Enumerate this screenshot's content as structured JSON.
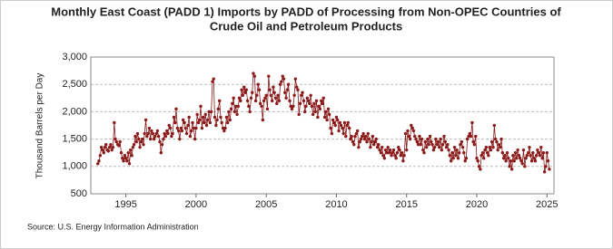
{
  "chart_data": {
    "type": "line",
    "title": [
      "Monthly East Coast (PADD 1) Imports by PADD of Processing from Non-OPEC Countries of",
      "Crude Oil and Petroleum Products"
    ],
    "y_label": "Thousand Barrels per Day",
    "source": "Source: U.S. Energy Information Administration",
    "xlim": [
      1992.5,
      2025.5
    ],
    "xticks": [
      1995,
      2000,
      2005,
      2010,
      2015,
      2020,
      2025
    ],
    "ylim": [
      500,
      3000
    ],
    "yticks": [
      500,
      {
        "value": 1000,
        "label": "1,000"
      },
      {
        "value": 1500,
        "label": "1,500"
      },
      {
        "value": 2000,
        "label": "2,000"
      },
      {
        "value": 2500,
        "label": "2,500"
      },
      {
        "value": 3000,
        "label": "3,000"
      }
    ],
    "grid": true,
    "series": [
      {
        "color": "#8b1a1a",
        "x": [
          1993,
          1993.08,
          1993.17,
          1993.25,
          1993.33,
          1993.42,
          1993.5,
          1993.58,
          1993.67,
          1993.75,
          1993.83,
          1993.92,
          1994,
          1994.08,
          1994.17,
          1994.25,
          1994.33,
          1994.42,
          1994.5,
          1994.58,
          1994.67,
          1994.75,
          1994.83,
          1994.92,
          1995,
          1995.08,
          1995.17,
          1995.25,
          1995.33,
          1995.42,
          1995.5,
          1995.58,
          1995.67,
          1995.75,
          1995.83,
          1995.92,
          1996,
          1996.08,
          1996.17,
          1996.25,
          1996.33,
          1996.42,
          1996.5,
          1996.58,
          1996.67,
          1996.75,
          1996.83,
          1996.92,
          1997,
          1997.08,
          1997.17,
          1997.25,
          1997.33,
          1997.42,
          1997.5,
          1997.58,
          1997.67,
          1997.75,
          1997.83,
          1997.92,
          1998,
          1998.08,
          1998.17,
          1998.25,
          1998.33,
          1998.42,
          1998.5,
          1998.58,
          1998.67,
          1998.75,
          1998.83,
          1998.92,
          1999,
          1999.08,
          1999.17,
          1999.25,
          1999.33,
          1999.42,
          1999.5,
          1999.58,
          1999.67,
          1999.75,
          1999.83,
          1999.92,
          2000,
          2000.08,
          2000.17,
          2000.25,
          2000.33,
          2000.42,
          2000.5,
          2000.58,
          2000.67,
          2000.75,
          2000.83,
          2000.92,
          2001,
          2001.08,
          2001.17,
          2001.25,
          2001.33,
          2001.42,
          2001.5,
          2001.58,
          2001.67,
          2001.75,
          2001.83,
          2001.92,
          2002,
          2002.08,
          2002.17,
          2002.25,
          2002.33,
          2002.42,
          2002.5,
          2002.58,
          2002.67,
          2002.75,
          2002.83,
          2002.92,
          2003,
          2003.08,
          2003.17,
          2003.25,
          2003.33,
          2003.42,
          2003.5,
          2003.58,
          2003.67,
          2003.75,
          2003.83,
          2003.92,
          2004,
          2004.08,
          2004.17,
          2004.25,
          2004.33,
          2004.42,
          2004.5,
          2004.58,
          2004.67,
          2004.75,
          2004.83,
          2004.92,
          2005,
          2005.08,
          2005.17,
          2005.25,
          2005.33,
          2005.42,
          2005.5,
          2005.58,
          2005.67,
          2005.75,
          2005.83,
          2005.92,
          2006,
          2006.08,
          2006.17,
          2006.25,
          2006.33,
          2006.42,
          2006.5,
          2006.58,
          2006.67,
          2006.75,
          2006.83,
          2006.92,
          2007,
          2007.08,
          2007.17,
          2007.25,
          2007.33,
          2007.42,
          2007.5,
          2007.58,
          2007.67,
          2007.75,
          2007.83,
          2007.92,
          2008,
          2008.08,
          2008.17,
          2008.25,
          2008.33,
          2008.42,
          2008.5,
          2008.58,
          2008.67,
          2008.75,
          2008.83,
          2008.92,
          2009,
          2009.08,
          2009.17,
          2009.25,
          2009.33,
          2009.42,
          2009.5,
          2009.58,
          2009.67,
          2009.75,
          2009.83,
          2009.92,
          2010,
          2010.08,
          2010.17,
          2010.25,
          2010.33,
          2010.42,
          2010.5,
          2010.58,
          2010.67,
          2010.75,
          2010.83,
          2010.92,
          2011,
          2011.08,
          2011.17,
          2011.25,
          2011.33,
          2011.42,
          2011.5,
          2011.58,
          2011.67,
          2011.75,
          2011.83,
          2011.92,
          2012,
          2012.08,
          2012.17,
          2012.25,
          2012.33,
          2012.42,
          2012.5,
          2012.58,
          2012.67,
          2012.75,
          2012.83,
          2012.92,
          2013,
          2013.08,
          2013.17,
          2013.25,
          2013.33,
          2013.42,
          2013.5,
          2013.58,
          2013.67,
          2013.75,
          2013.83,
          2013.92,
          2014,
          2014.08,
          2014.17,
          2014.25,
          2014.33,
          2014.42,
          2014.5,
          2014.58,
          2014.67,
          2014.75,
          2014.83,
          2014.92,
          2015,
          2015.08,
          2015.17,
          2015.25,
          2015.33,
          2015.42,
          2015.5,
          2015.58,
          2015.67,
          2015.75,
          2015.83,
          2015.92,
          2016,
          2016.08,
          2016.17,
          2016.25,
          2016.33,
          2016.42,
          2016.5,
          2016.58,
          2016.67,
          2016.75,
          2016.83,
          2016.92,
          2017,
          2017.08,
          2017.17,
          2017.25,
          2017.33,
          2017.42,
          2017.5,
          2017.58,
          2017.67,
          2017.75,
          2017.83,
          2017.92,
          2018,
          2018.08,
          2018.17,
          2018.25,
          2018.33,
          2018.42,
          2018.5,
          2018.58,
          2018.67,
          2018.75,
          2018.83,
          2018.92,
          2019,
          2019.08,
          2019.17,
          2019.25,
          2019.33,
          2019.42,
          2019.5,
          2019.58,
          2019.67,
          2019.75,
          2019.83,
          2019.92,
          2020,
          2020.08,
          2020.17,
          2020.25,
          2020.33,
          2020.42,
          2020.5,
          2020.58,
          2020.67,
          2020.75,
          2020.83,
          2020.92,
          2021,
          2021.08,
          2021.17,
          2021.25,
          2021.33,
          2021.42,
          2021.5,
          2021.58,
          2021.67,
          2021.75,
          2021.83,
          2021.92,
          2022,
          2022.08,
          2022.17,
          2022.25,
          2022.33,
          2022.42,
          2022.5,
          2022.58,
          2022.67,
          2022.75,
          2022.83,
          2022.92,
          2023,
          2023.08,
          2023.17,
          2023.25,
          2023.33,
          2023.42,
          2023.5,
          2023.58,
          2023.67,
          2023.75,
          2023.83,
          2023.92,
          2024,
          2024.08,
          2024.17,
          2024.25,
          2024.33,
          2024.42,
          2024.5,
          2024.58,
          2024.67,
          2024.75,
          2024.83,
          2024.92,
          2025,
          2025.08,
          2025.17
        ],
        "values": [
          1050,
          1100,
          1200,
          1350,
          1300,
          1250,
          1350,
          1400,
          1300,
          1280,
          1350,
          1400,
          1300,
          1350,
          1800,
          1500,
          1450,
          1400,
          1380,
          1450,
          1250,
          1150,
          1100,
          1200,
          1150,
          1100,
          1250,
          1050,
          1300,
          1200,
          1350,
          1400,
          1550,
          1450,
          1600,
          1500,
          1350,
          1450,
          1500,
          1400,
          1600,
          1850,
          1550,
          1600,
          1700,
          1500,
          1650,
          1600,
          1500,
          1550,
          1600,
          1650,
          1550,
          1450,
          1250,
          1400,
          1500,
          1600,
          1550,
          1650,
          1600,
          1750,
          1700,
          1550,
          1600,
          1900,
          1800,
          2050,
          1700,
          1650,
          1500,
          1700,
          1650,
          1850,
          1800,
          1700,
          1600,
          1750,
          1900,
          1550,
          1650,
          1800,
          1700,
          1500,
          1700,
          1950,
          1800,
          1850,
          2100,
          1700,
          1900,
          1800,
          1950,
          1750,
          1850,
          2000,
          1800,
          2000,
          2550,
          2600,
          1900,
          1750,
          1850,
          2050,
          2200,
          1900,
          1800,
          1700,
          1650,
          1700,
          1900,
          1800,
          2000,
          1850,
          2050,
          2150,
          2250,
          2000,
          2100,
          1950,
          2100,
          2250,
          2200,
          2400,
          2300,
          2450,
          2350,
          2400,
          2200,
          2100,
          2000,
          2250,
          2350,
          2700,
          2650,
          2200,
          2300,
          2500,
          2400,
          2150,
          2100,
          1850,
          2200,
          2250,
          2300,
          2050,
          2650,
          2400,
          2300,
          2200,
          2450,
          2350,
          2250,
          2150,
          2300,
          2200,
          2500,
          2550,
          2650,
          2600,
          2350,
          2250,
          2400,
          2500,
          2200,
          2100,
          2050,
          2100,
          2300,
          2600,
          2450,
          2400,
          1950,
          2150,
          2300,
          2350,
          2200,
          2000,
          2100,
          2250,
          2200,
          2150,
          2300,
          2100,
          1950,
          2150,
          2000,
          2200,
          1900,
          2100,
          2050,
          2200,
          2150,
          2250,
          1900,
          2000,
          1850,
          2050,
          1950,
          1700,
          1600,
          1850,
          1800,
          1750,
          1900,
          1850,
          1650,
          1800,
          1750,
          1700,
          1600,
          1800,
          1550,
          1750,
          1800,
          1700,
          1500,
          1550,
          1450,
          1400,
          1550,
          1600,
          1650,
          1350,
          1450,
          1500,
          1550,
          1600,
          1500,
          1550,
          1450,
          1600,
          1500,
          1350,
          1450,
          1550,
          1400,
          1450,
          1500,
          1350,
          1400,
          1300,
          1250,
          1350,
          1200,
          1150,
          1300,
          1250,
          1350,
          1250,
          1300,
          1200,
          1250,
          1300,
          1200,
          1150,
          1250,
          1350,
          1300,
          1200,
          1250,
          1100,
          1200,
          1600,
          1300,
          1650,
          1550,
          1500,
          1750,
          1700,
          1650,
          1550,
          1500,
          1450,
          1400,
          1550,
          1400,
          1500,
          1300,
          1250,
          1450,
          1350,
          1500,
          1400,
          1550,
          1450,
          1400,
          1300,
          1350,
          1500,
          1400,
          1450,
          1350,
          1500,
          1300,
          1400,
          1550,
          1450,
          1350,
          1400,
          1300,
          1200,
          1100,
          1250,
          1150,
          1350,
          1200,
          1300,
          1150,
          1250,
          1400,
          1450,
          1350,
          1250,
          1100,
          1150,
          1500,
          1550,
          1600,
          1550,
          1800,
          1450,
          1400,
          1550,
          1150,
          1100,
          1000,
          950,
          1200,
          1250,
          1150,
          1300,
          1350,
          1250,
          1200,
          1350,
          1300,
          1450,
          1350,
          1750,
          1500,
          1450,
          1300,
          1400,
          1350,
          1500,
          1250,
          1150,
          1200,
          1100,
          1250,
          1150,
          1000,
          1100,
          950,
          1200,
          1100,
          1250,
          1150,
          1300,
          1200,
          1150,
          1100,
          1050,
          1300,
          1000,
          1150,
          1200,
          1250,
          1350,
          1200,
          1100,
          1250,
          1150,
          1100,
          1200,
          1300,
          1250,
          1200,
          1350,
          1150,
          1250,
          900,
          1000,
          1250,
          1100,
          950
        ]
      }
    ]
  }
}
